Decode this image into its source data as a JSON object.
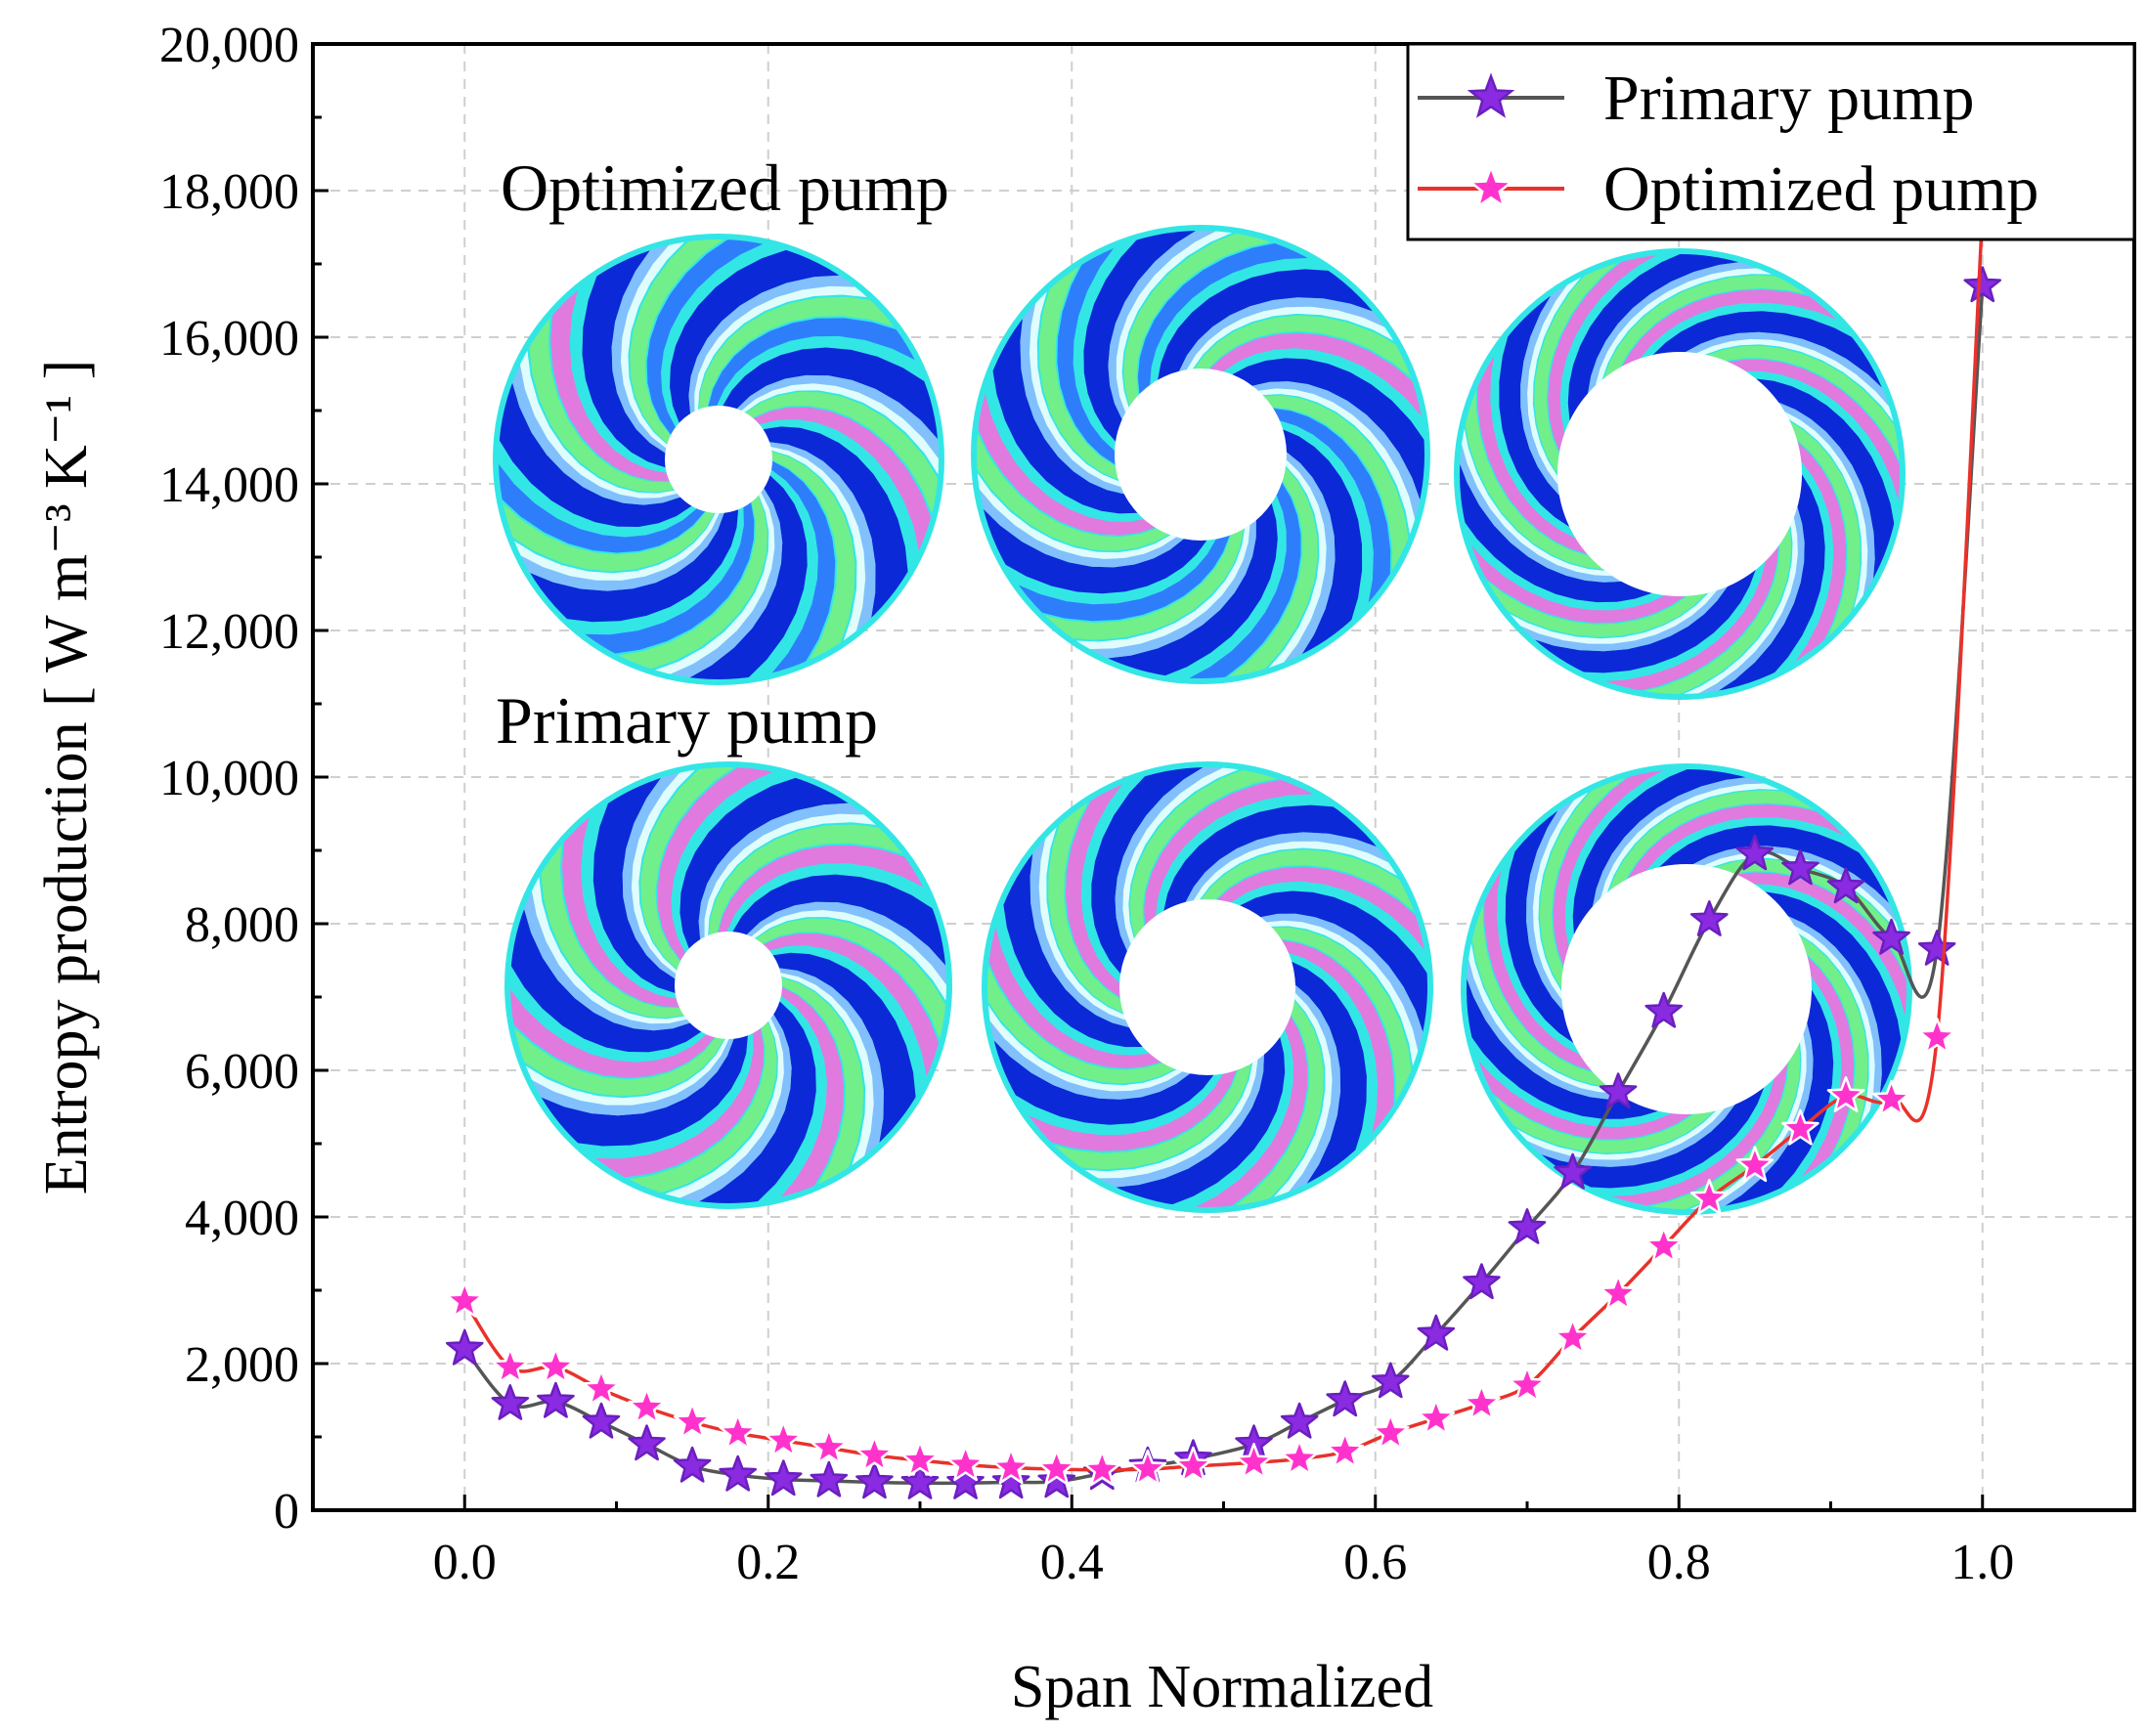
{
  "chart_data": {
    "type": "line",
    "xlabel": "Span Normalized",
    "ylabel": "Entropy production [ W m⁻³ K⁻¹ ]",
    "xlim": [
      -0.1,
      1.1
    ],
    "ylim": [
      0,
      20000
    ],
    "x_ticks": [
      0.0,
      0.2,
      0.4,
      0.6,
      0.8,
      1.0
    ],
    "x_tick_labels": [
      "0.0",
      "0.2",
      "0.4",
      "0.6",
      "0.8",
      "1.0"
    ],
    "y_ticks": [
      0,
      2000,
      4000,
      6000,
      8000,
      10000,
      12000,
      14000,
      16000,
      18000,
      20000
    ],
    "y_tick_labels": [
      "0",
      "2,000",
      "4,000",
      "6,000",
      "8,000",
      "10,000",
      "12,000",
      "14,000",
      "16,000",
      "18,000",
      "20,000"
    ],
    "grid": true,
    "legend_position": "top-right",
    "series": [
      {
        "name": "Primary pump",
        "line_color": "#555555",
        "marker_color": "#8a2be2",
        "x": [
          0.0,
          0.03,
          0.06,
          0.09,
          0.12,
          0.15,
          0.18,
          0.21,
          0.24,
          0.27,
          0.3,
          0.33,
          0.36,
          0.39,
          0.42,
          0.45,
          0.48,
          0.52,
          0.55,
          0.58,
          0.61,
          0.64,
          0.67,
          0.7,
          0.73,
          0.76,
          0.79,
          0.82,
          0.85,
          0.88,
          0.91,
          0.94,
          0.97,
          1.0
        ],
        "y": [
          2200,
          1450,
          1480,
          1200,
          900,
          600,
          480,
          420,
          400,
          380,
          370,
          370,
          380,
          390,
          500,
          600,
          700,
          900,
          1200,
          1500,
          1750,
          2400,
          3100,
          3850,
          4600,
          5700,
          6800,
          8050,
          8950,
          8750,
          8500,
          7800,
          7650,
          16700
        ]
      },
      {
        "name": "Optimized pump",
        "line_color": "#e8322b",
        "marker_color": "#ff33cc",
        "x": [
          0.0,
          0.03,
          0.06,
          0.09,
          0.12,
          0.15,
          0.18,
          0.21,
          0.24,
          0.27,
          0.3,
          0.33,
          0.36,
          0.39,
          0.42,
          0.45,
          0.48,
          0.52,
          0.55,
          0.58,
          0.61,
          0.64,
          0.67,
          0.7,
          0.73,
          0.76,
          0.79,
          0.82,
          0.85,
          0.88,
          0.91,
          0.94,
          0.97,
          1.0
        ],
        "y": [
          2850,
          1950,
          1950,
          1650,
          1400,
          1200,
          1050,
          950,
          850,
          750,
          680,
          620,
          580,
          560,
          550,
          560,
          600,
          650,
          700,
          800,
          1050,
          1250,
          1450,
          1700,
          2350,
          2950,
          3600,
          4250,
          4700,
          5200,
          5650,
          5600,
          6450,
          17700
        ]
      }
    ],
    "inset_labels": {
      "optimized": "Optimized pump",
      "primary": "Primary pump"
    },
    "inset_contour_colors": [
      "#0a1fd6",
      "#2e6bff",
      "#8fb8ff",
      "#ffffff",
      "#33e6e6",
      "#7df07a",
      "#ff66dd",
      "#ff99cc"
    ]
  }
}
